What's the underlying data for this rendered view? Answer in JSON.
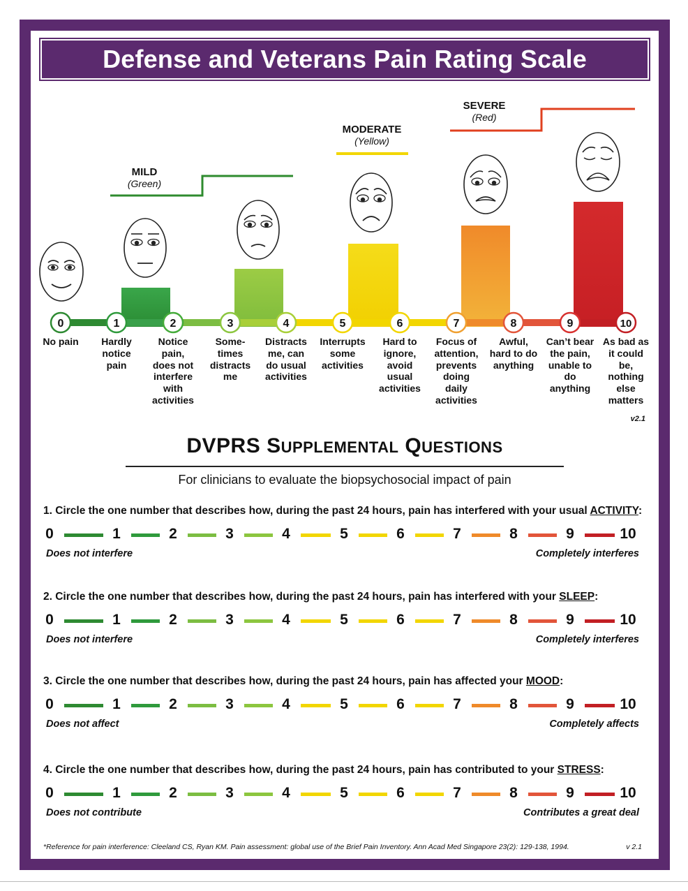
{
  "title": "Defense and Veterans Pain Rating Scale",
  "categories": [
    {
      "name": "MILD",
      "color_name": "(Green)",
      "line_color": "#2e8b2e"
    },
    {
      "name": "MODERATE",
      "color_name": "(Yellow)",
      "line_color": "#f2d600"
    },
    {
      "name": "SEVERE",
      "color_name": "(Red)",
      "line_color": "#e0401f"
    }
  ],
  "scale_levels": [
    {
      "number": "0",
      "label": [
        "No pain"
      ],
      "color": "#2e8a32",
      "bar_level": 0
    },
    {
      "number": "1",
      "label": [
        "Hardly",
        "notice",
        "pain"
      ],
      "color": "#2f9a3c",
      "bar_level": 1
    },
    {
      "number": "2",
      "label": [
        "Notice",
        "pain,",
        "does not",
        "interfere",
        "with",
        "activities"
      ],
      "color": "#45ab3a",
      "bar_level": 2
    },
    {
      "number": "3",
      "label": [
        "Some-",
        "times",
        "distracts",
        "me"
      ],
      "color": "#8cc63f",
      "bar_level": 3
    },
    {
      "number": "4",
      "label": [
        "Distracts",
        "me, can",
        "do usual",
        "activities"
      ],
      "color": "#a8cf38",
      "bar_level": 4
    },
    {
      "number": "5",
      "label": [
        "Interrupts",
        "some",
        "activities"
      ],
      "color": "#f2d600",
      "bar_level": 5
    },
    {
      "number": "6",
      "label": [
        "Hard to",
        "ignore,",
        "avoid",
        "usual",
        "activities"
      ],
      "color": "#f2d600",
      "bar_level": 6
    },
    {
      "number": "7",
      "label": [
        "Focus of",
        "attention,",
        "prevents",
        "doing",
        "daily",
        "activities"
      ],
      "color": "#f0a030",
      "bar_level": 7
    },
    {
      "number": "8",
      "label": [
        "Awful,",
        "hard to do",
        "anything"
      ],
      "color": "#e2553a",
      "bar_level": 8
    },
    {
      "number": "9",
      "label": [
        "Can’t bear",
        "the pain,",
        "unable to",
        "do",
        "anything"
      ],
      "color": "#d8312f",
      "bar_level": 9
    },
    {
      "number": "10",
      "label": [
        "As bad as",
        "it could",
        "be,",
        "nothing",
        "else",
        "matters"
      ],
      "color": "#c21f24",
      "bar_level": 10
    }
  ],
  "face_icons": [
    "face-0-smiling-icon",
    "face-2-neutral-icon",
    "face-4-worried-icon",
    "face-6-sad-icon",
    "face-8-grimacing-icon",
    "face-10-crying-icon"
  ],
  "version_top": "v2.1",
  "supplemental": {
    "title_big1": "DVPRS",
    "title_S": "S",
    "title_upplemental": "UPPLEMENTAL",
    "title_Q": "Q",
    "title_uestions": "UESTIONS",
    "subtitle": "For clinicians to evaluate the biopsychosocial impact of pain"
  },
  "scale_numbers": [
    "0",
    "1",
    "2",
    "3",
    "4",
    "5",
    "6",
    "7",
    "8",
    "9",
    "10"
  ],
  "segment_colors": [
    "#2e8a32",
    "#2f9a3c",
    "#7cbd42",
    "#8cc63f",
    "#f2d600",
    "#f2d600",
    "#f2d600",
    "#ef8a2a",
    "#e2553a",
    "#c21f24"
  ],
  "questions": [
    {
      "prefix": "1. Circle the one number that describes how, during the past 24 hours, pain has interfered with your usual ",
      "keyword": "ACTIVITY",
      "suffix": ":",
      "left_anchor": "Does not interfere",
      "right_anchor": "Completely interferes"
    },
    {
      "prefix": "2. Circle the one number that describes how, during the past 24 hours, pain has interfered with your ",
      "keyword": "SLEEP",
      "suffix": ":",
      "left_anchor": "Does not interfere",
      "right_anchor": "Completely interferes"
    },
    {
      "prefix": "3. Circle the one number that describes how, during the past 24 hours, pain has affected your ",
      "keyword": "MOOD",
      "suffix": ":",
      "left_anchor": "Does not affect",
      "right_anchor": "Completely affects"
    },
    {
      "prefix": "4. Circle the one number that describes how, during the past 24 hours, pain has contributed to your ",
      "keyword": "STRESS",
      "suffix": ":",
      "left_anchor": "Does not contribute",
      "right_anchor": "Contributes a great deal"
    }
  ],
  "footer": {
    "reference": "*Reference for pain interference: Cleeland CS, Ryan KM. Pain assessment: global use of the Brief Pain Inventory. Ann Acad Med Singapore 23(2): 129-138, 1994.",
    "version": "v 2.1"
  }
}
